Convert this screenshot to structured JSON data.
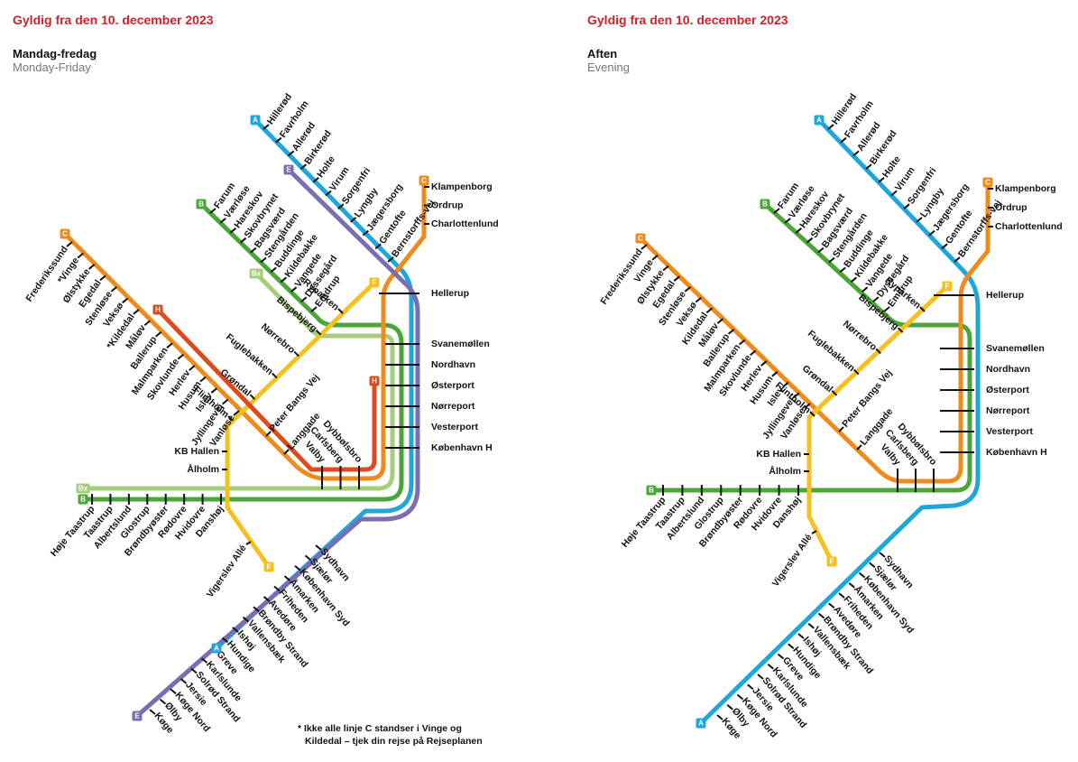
{
  "panels": [
    {
      "validity": "Gyldig fra den 10. december 2023",
      "title": "Mandag-fredag",
      "subtitle": "Monday-Friday",
      "lines": [
        {
          "name": "A",
          "color": "#1ea7dc"
        },
        {
          "name": "B",
          "color": "#4ca538"
        },
        {
          "name": "Bx",
          "color": "#a6cd7a"
        },
        {
          "name": "C",
          "color": "#ef8b1a"
        },
        {
          "name": "E",
          "color": "#7b6db0"
        },
        {
          "name": "F",
          "color": "#f6c11c"
        },
        {
          "name": "H",
          "color": "#dd4a1e"
        }
      ],
      "stations": {
        "a_north": [
          "Hillerød",
          "Favrholm",
          "Allerød",
          "Birkerød",
          "Holte",
          "Virum",
          "Sorgenfri",
          "Lyngby",
          "Jægersborg",
          "Gentofte",
          "Bernstorffs-vej"
        ],
        "c_north": [
          "Klampenborg",
          "Ordrup",
          "Charlottenlund"
        ],
        "hellerup": [
          "Hellerup"
        ],
        "central": [
          "Svanemøllen",
          "Nordhavn",
          "Østerport",
          "Nørreport",
          "Vesterport",
          "København H"
        ],
        "b_north": [
          "Farum",
          "Værløse",
          "Hareskov",
          "Skovbrynet",
          "Bagsværd",
          "Stengården",
          "Buddinge",
          "Kildebakke",
          "Vangede",
          "Dyssegård",
          "Emdrup"
        ],
        "f_ring": [
          "Ryparken",
          "Bispebjerg",
          "Nørrebro",
          "Fuglebakken",
          "Grøndal",
          "Flintholm"
        ],
        "c_west": [
          "Frederikssund",
          "*Vinge",
          "Ølstykke",
          "Egedal",
          "Stenløse",
          "Veksø",
          "*Kildedal",
          "Måløv",
          "Ballerup",
          "Malmparken",
          "Skovlunde",
          "Herlev",
          "Husum",
          "Islev",
          "Jyllingevej",
          "Vanløse"
        ],
        "c_inner": [
          "Peter Bangs Vej",
          "Langgade"
        ],
        "ring_south": [
          "Valby",
          "Carlsberg",
          "Dybbølsbro"
        ],
        "f_west": [
          "KB Hallen",
          "Ålholm"
        ],
        "vigerslev": [
          "Vigerslev Allé"
        ],
        "b_west": [
          "Høje Taastrup",
          "Taastrup",
          "Albertslund",
          "Glostrup",
          "Brøndbyøster",
          "Rødovre",
          "Hvidovre",
          "Danshøj"
        ],
        "a_south": [
          "Sydhavn",
          "Sjælør",
          "København Syd",
          "Åmarken",
          "Friheden",
          "Avedøre",
          "Brøndby Strand",
          "Vallensbæk",
          "Ishøj",
          "Hundige",
          "Greve",
          "Karlslunde",
          "Solrød Strand",
          "Jersie",
          "Køge Nord",
          "Ølby",
          "Køge"
        ]
      },
      "footnote": [
        "* Ikke alle linje C standser i Vinge og",
        "Kildedal – tjek din rejse på Rejseplanen"
      ]
    },
    {
      "validity": "Gyldig fra den 10. december 2023",
      "title": "Aften",
      "subtitle": "Evening",
      "lines": [
        {
          "name": "A",
          "color": "#1ea7dc"
        },
        {
          "name": "B",
          "color": "#4ca538"
        },
        {
          "name": "C",
          "color": "#ef8b1a"
        },
        {
          "name": "F",
          "color": "#f6c11c"
        }
      ],
      "stations": {
        "a_north": [
          "Hillerød",
          "Favrholm",
          "Allerød",
          "Birkerød",
          "Holte",
          "Virum",
          "Sorgenfri",
          "Lyngby",
          "Jægersborg",
          "Gentofte",
          "Bernstorffs-vej"
        ],
        "c_north": [
          "Klampenborg",
          "Ordrup",
          "Charlottenlund"
        ],
        "hellerup": [
          "Hellerup"
        ],
        "central": [
          "Svanemøllen",
          "Nordhavn",
          "Østerport",
          "Nørreport",
          "Vesterport",
          "København H"
        ],
        "b_north": [
          "Farum",
          "Værløse",
          "Hareskov",
          "Skovbrynet",
          "Bagsværd",
          "Stengården",
          "Buddinge",
          "Kildebakke",
          "Vangede",
          "Dyssegård",
          "Emdrup"
        ],
        "f_ring": [
          "Ryparken",
          "Bispebjerg",
          "Nørrebro",
          "Fuglebakken",
          "Grøndal",
          "Flintholm"
        ],
        "c_west": [
          "Frederikssund",
          "Vinge",
          "Ølstykke",
          "Egedal",
          "Stenløse",
          "Veksø",
          "Kildedal",
          "Måløv",
          "Ballerup",
          "Malmparken",
          "Skovlunde",
          "Herlev",
          "Husum",
          "Islev",
          "Jyllingevej",
          "Vanløse"
        ],
        "c_inner": [
          "Peter Bangs Vej",
          "Langgade"
        ],
        "ring_south": [
          "Valby",
          "Carlsberg",
          "Dybbølsbro"
        ],
        "f_west": [
          "KB Hallen",
          "Ålholm"
        ],
        "vigerslev": [
          "Vigerslev Allé"
        ],
        "b_west": [
          "Høje Taastrup",
          "Taastrup",
          "Albertslund",
          "Glostrup",
          "Brøndbyøster",
          "Rødovre",
          "Hvidovre",
          "Danshøj"
        ],
        "a_south": [
          "Sydhavn",
          "Sjælør",
          "København Syd",
          "Åmarken",
          "Friheden",
          "Avedøre",
          "Brøndby Strand",
          "Vallensbæk",
          "Ishøj",
          "Hundige",
          "Greve",
          "Karlslunde",
          "Solrød Strand",
          "Jersie",
          "Køge Nord",
          "Ølby",
          "Køge"
        ]
      }
    }
  ]
}
